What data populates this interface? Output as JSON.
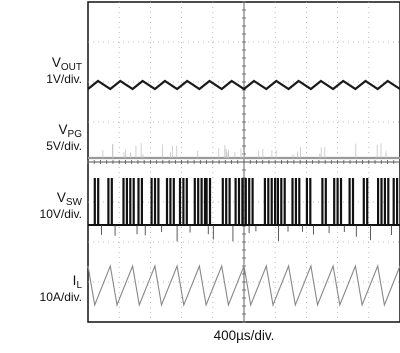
{
  "chart_data": {
    "type": "line",
    "xlabel": "400µs/div.",
    "x_divisions": 10,
    "y_divisions": 8,
    "grid": true,
    "traces": [
      {
        "symbol": "V",
        "subscript": "OUT",
        "scale": "1V/div.",
        "waveform": "ripple",
        "cycles": 14,
        "color": "#1a1a1a"
      },
      {
        "symbol": "V",
        "subscript": "PG",
        "scale": "5V/div.",
        "waveform": "flat-high",
        "color": "#9a9a9a"
      },
      {
        "symbol": "V",
        "subscript": "SW",
        "scale": "10V/div.",
        "waveform": "burst-switching",
        "bursts": 22,
        "color": "#111111"
      },
      {
        "symbol": "I",
        "subscript": "L",
        "scale": "10A/div.",
        "waveform": "triangle",
        "cycles": 14,
        "color": "#888888"
      }
    ]
  }
}
